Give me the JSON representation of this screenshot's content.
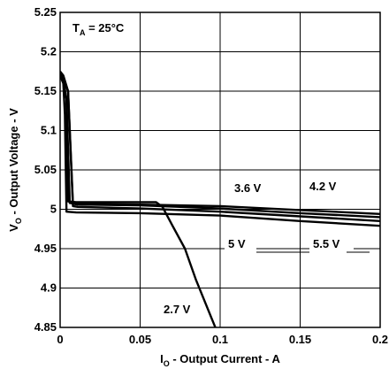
{
  "chart_data": {
    "type": "line",
    "xlabel_main": "I",
    "xlabel_sub": "O",
    "xlabel_rest": " - Output Current - A",
    "ylabel_main": "V",
    "ylabel_sub": "O",
    "ylabel_rest": " - Output Voltage - V",
    "annotation_main": "T",
    "annotation_sub": "A",
    "annotation_rest": " = 25°C",
    "xlim": [
      0,
      0.2
    ],
    "ylim": [
      4.85,
      5.25
    ],
    "x_ticks": [
      0,
      0.05,
      0.1,
      0.15,
      0.2
    ],
    "x_tick_labels": [
      "0",
      "0.05",
      "0.1",
      "0.15",
      "0.2"
    ],
    "y_ticks": [
      4.85,
      4.9,
      4.95,
      5,
      5.05,
      5.1,
      5.15,
      5.2,
      5.25
    ],
    "y_tick_labels": [
      "4.85",
      "4.9",
      "4.95",
      "5",
      "5.05",
      "5.1",
      "5.15",
      "5.2",
      "5.25"
    ],
    "grid": true,
    "series": [
      {
        "name": "2.7 V",
        "x": [
          0,
          0.002,
          0.004,
          0.005,
          0.01,
          0.02,
          0.04,
          0.06,
          0.064,
          0.07,
          0.078,
          0.085,
          0.095,
          0.1
        ],
        "y": [
          5.17,
          5.16,
          5.14,
          5.01,
          5.009,
          5.009,
          5.009,
          5.009,
          5.003,
          4.98,
          4.95,
          4.91,
          4.86,
          4.835
        ]
      },
      {
        "name": "3.6 V",
        "x": [
          0,
          0.002,
          0.004,
          0.006,
          0.01,
          0.05,
          0.1,
          0.15,
          0.2
        ],
        "y": [
          5.175,
          5.165,
          5.14,
          5.008,
          5.007,
          5.006,
          5.004,
          4.999,
          4.994
        ]
      },
      {
        "name": "4.2 V",
        "x": [
          0,
          0.002,
          0.005,
          0.008,
          0.011,
          0.05,
          0.1,
          0.15,
          0.2
        ],
        "y": [
          5.175,
          5.17,
          5.15,
          5.007,
          5.006,
          5.005,
          5.001,
          4.995,
          4.99
        ]
      },
      {
        "name": "5 V",
        "x": [
          0,
          0.002,
          0.005,
          0.008,
          0.011,
          0.05,
          0.1,
          0.15,
          0.2
        ],
        "y": [
          5.17,
          5.165,
          5.15,
          5.004,
          5.003,
          5.001,
          4.997,
          4.991,
          4.985
        ]
      },
      {
        "name": "5.5 V",
        "x": [
          0,
          0.002,
          0.003,
          0.004,
          0.01,
          0.05,
          0.1,
          0.15,
          0.2
        ],
        "y": [
          5.17,
          5.16,
          5.12,
          4.997,
          4.996,
          4.995,
          4.992,
          4.985,
          4.979
        ]
      }
    ]
  }
}
